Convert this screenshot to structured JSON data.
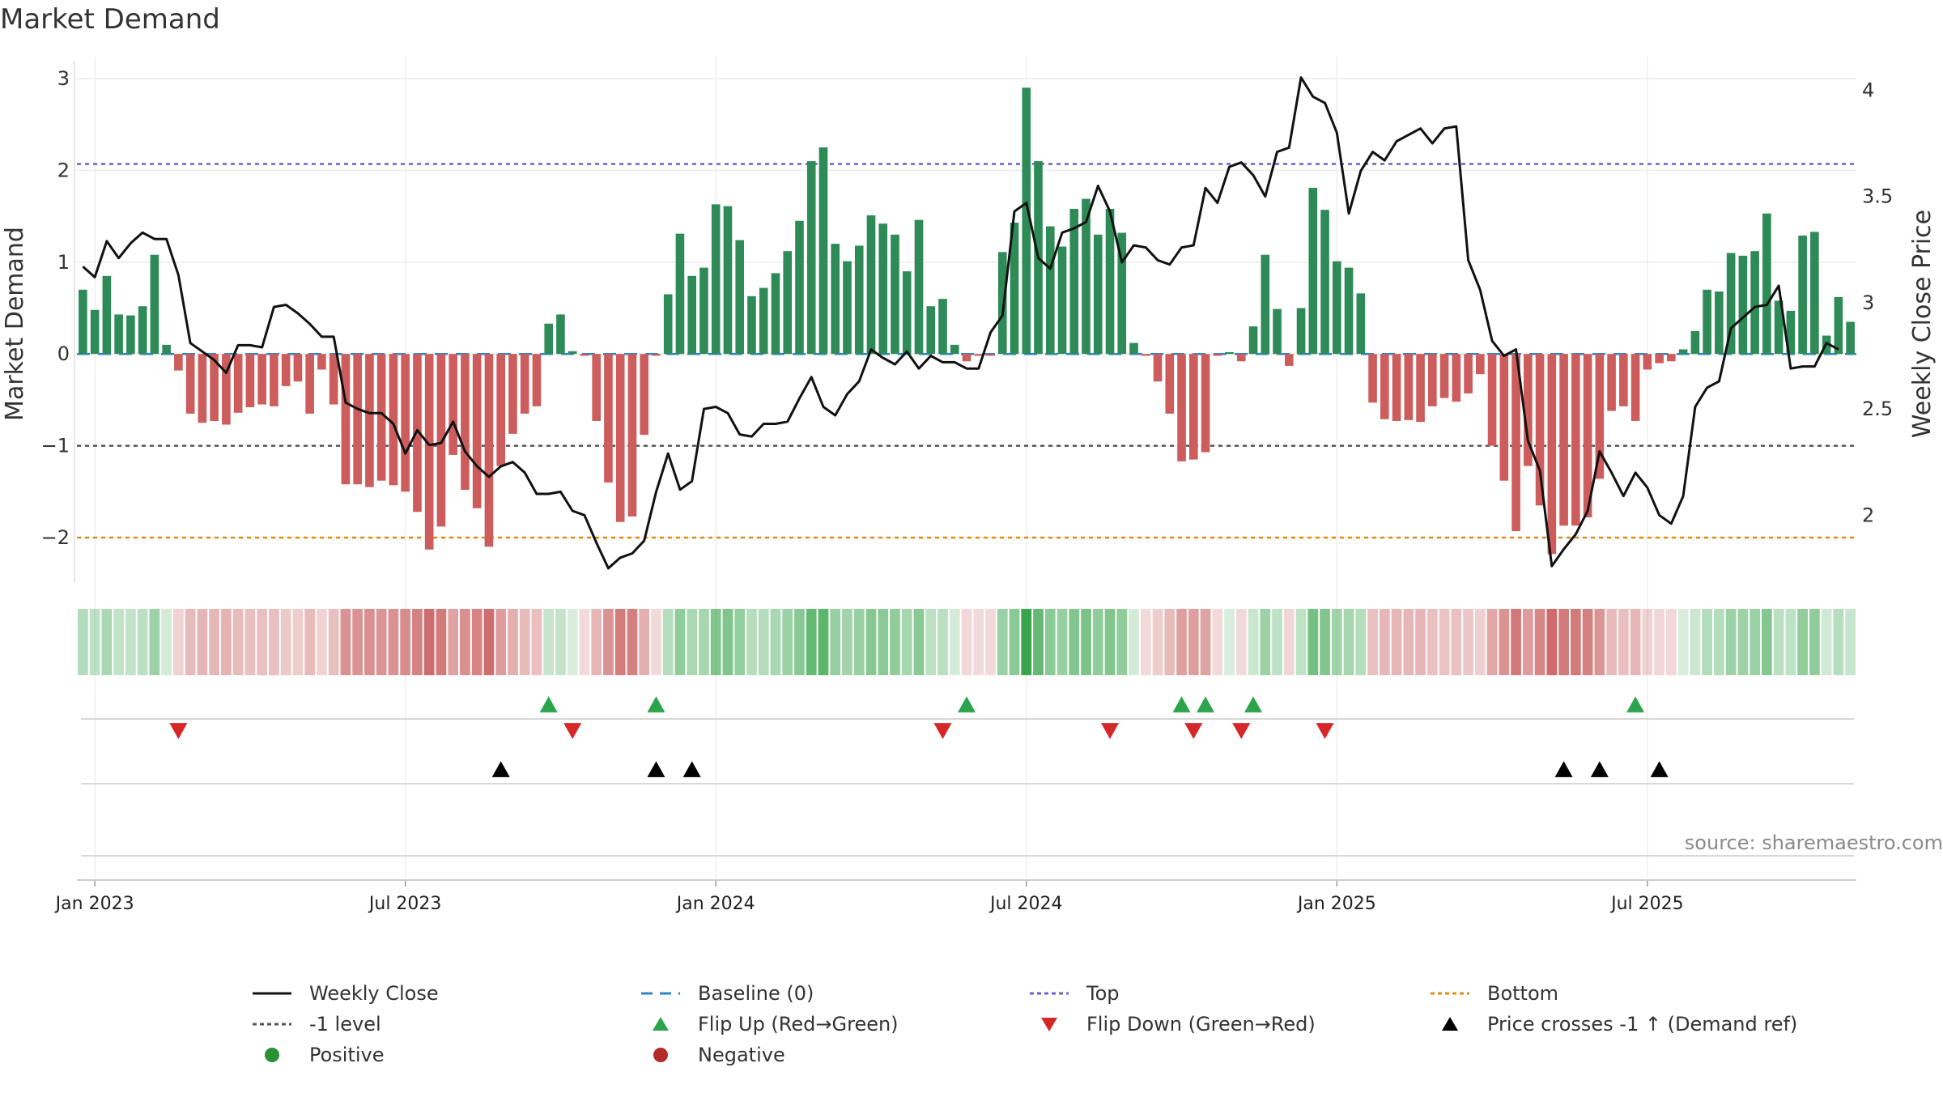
{
  "chart_data": {
    "type": "bar",
    "title": "Market Demand",
    "ylabel": "Market Demand",
    "y2label": "Weekly Close Price",
    "ylim": [
      -2.45,
      3.15
    ],
    "y2lim": [
      1.7,
      4.12
    ],
    "yticks": [
      3,
      2,
      1,
      0,
      -1,
      -2
    ],
    "ytick_labels": [
      "3",
      "2",
      "1",
      "0",
      "−1",
      "−2"
    ],
    "y2ticks": [
      4,
      3.5,
      3,
      2.5,
      2
    ],
    "y2tick_labels": [
      "4",
      "3.5",
      "3",
      "2.5",
      "2"
    ],
    "x_ticks": [
      "Jan 2023",
      "Jul 2023",
      "Jan 2024",
      "Jul 2024",
      "Jan 2025",
      "Jul 2025"
    ],
    "x_tick_weeks": [
      1.5,
      27.5,
      53.5,
      79.5,
      105.5,
      131.5
    ],
    "reference_lines": {
      "top": 2.07,
      "minus_one": -1,
      "bottom": -2,
      "baseline": 0
    },
    "series": [
      {
        "name": "Market Demand",
        "values": [
          0.7,
          0.48,
          0.85,
          0.43,
          0.42,
          0.52,
          1.08,
          0.1,
          -0.18,
          -0.65,
          -0.75,
          -0.73,
          -0.77,
          -0.64,
          -0.58,
          -0.55,
          -0.57,
          -0.35,
          -0.3,
          -0.65,
          -0.17,
          -0.55,
          -1.42,
          -1.42,
          -1.45,
          -1.38,
          -1.43,
          -1.5,
          -1.72,
          -2.13,
          -1.88,
          -1.1,
          -1.48,
          -1.68,
          -2.1,
          -1.22,
          -0.87,
          -0.65,
          -0.57,
          0.33,
          0.43,
          0.03,
          -0.02,
          -0.73,
          -1.4,
          -1.83,
          -1.77,
          -0.88,
          -0.02,
          0.65,
          1.31,
          0.85,
          0.94,
          1.63,
          1.61,
          1.24,
          0.63,
          0.72,
          0.88,
          1.12,
          1.45,
          2.1,
          2.25,
          1.2,
          1.01,
          1.18,
          1.51,
          1.42,
          1.3,
          0.9,
          1.46,
          0.52,
          0.6,
          0.1,
          -0.08,
          -0.02,
          -0.02,
          1.11,
          1.43,
          2.9,
          2.1,
          1.39,
          1.17,
          1.58,
          1.69,
          1.3,
          1.58,
          1.32,
          0.12,
          -0.02,
          -0.3,
          -0.65,
          -1.17,
          -1.15,
          -1.07,
          -0.02,
          0.02,
          -0.08,
          0.3,
          1.08,
          0.49,
          -0.13,
          0.5,
          1.81,
          1.57,
          1.01,
          0.94,
          0.66,
          -0.53,
          -0.71,
          -0.73,
          -0.72,
          -0.74,
          -0.57,
          -0.48,
          -0.52,
          -0.43,
          -0.22,
          -1.0,
          -1.38,
          -1.93,
          -1.22,
          -1.65,
          -2.18,
          -1.87,
          -1.87,
          -1.78,
          -1.36,
          -0.62,
          -0.57,
          -0.73,
          -0.17,
          -0.1,
          -0.08,
          0.05,
          0.25,
          0.7,
          0.68,
          1.1,
          1.07,
          1.12,
          1.53,
          0.58,
          0.47,
          1.29,
          1.33,
          0.2,
          0.62,
          0.35
        ]
      },
      {
        "name": "Weekly Close",
        "axis": "right",
        "values": [
          3.17,
          3.12,
          3.29,
          3.21,
          3.28,
          3.33,
          3.3,
          3.3,
          3.13,
          2.81,
          2.77,
          2.73,
          2.67,
          2.8,
          2.8,
          2.79,
          2.98,
          2.99,
          2.95,
          2.9,
          2.84,
          2.84,
          2.53,
          2.5,
          2.48,
          2.48,
          2.43,
          2.29,
          2.4,
          2.33,
          2.34,
          2.44,
          2.3,
          2.23,
          2.18,
          2.23,
          2.25,
          2.2,
          2.1,
          2.1,
          2.11,
          2.02,
          2.0,
          1.87,
          1.75,
          1.8,
          1.82,
          1.88,
          2.11,
          2.29,
          2.12,
          2.16,
          2.5,
          2.51,
          2.48,
          2.38,
          2.37,
          2.43,
          2.43,
          2.44,
          2.55,
          2.65,
          2.51,
          2.47,
          2.57,
          2.63,
          2.78,
          2.74,
          2.71,
          2.77,
          2.69,
          2.75,
          2.72,
          2.72,
          2.69,
          2.69,
          2.86,
          2.94,
          3.43,
          3.47,
          3.21,
          3.16,
          3.33,
          3.35,
          3.38,
          3.55,
          3.43,
          3.19,
          3.27,
          3.26,
          3.2,
          3.18,
          3.26,
          3.27,
          3.54,
          3.47,
          3.64,
          3.66,
          3.6,
          3.5,
          3.71,
          3.73,
          4.06,
          3.97,
          3.94,
          3.8,
          3.42,
          3.62,
          3.71,
          3.67,
          3.76,
          3.79,
          3.82,
          3.75,
          3.82,
          3.83,
          3.2,
          3.06,
          2.82,
          2.75,
          2.78,
          2.35,
          2.21,
          1.76,
          1.84,
          1.91,
          2.02,
          2.3,
          2.2,
          2.09,
          2.2,
          2.13,
          2.0,
          1.96,
          2.09,
          2.51,
          2.6,
          2.63,
          2.88,
          2.93,
          2.98,
          2.99,
          3.08,
          2.69,
          2.7,
          2.7,
          2.81,
          2.78
        ]
      }
    ],
    "heat_strip": "weekly demand intensity strip (green = positive, red = negative)",
    "events": {
      "flip_up_weeks": [
        39,
        48,
        74,
        92,
        94,
        98,
        130
      ],
      "flip_down_weeks": [
        8,
        41,
        72,
        86,
        93,
        97,
        104
      ],
      "price_cross_weeks": [
        35,
        48,
        51,
        124,
        127,
        132
      ]
    },
    "source": "source: sharemaestro.com",
    "legend": [
      {
        "label": "Weekly Close",
        "marker": "solid-line",
        "color": "#111111"
      },
      {
        "label": "Baseline (0)",
        "marker": "dashed-line",
        "color": "#2f86c6"
      },
      {
        "label": "Top",
        "marker": "dotted-line",
        "color": "#6c62c8"
      },
      {
        "label": "Bottom",
        "marker": "dotted-line",
        "color": "#e08a1a"
      },
      {
        "label": "-1 level",
        "marker": "dotted-line",
        "color": "#555555"
      },
      {
        "label": "Flip Up (Red→Green)",
        "marker": "triangle-up",
        "color": "#2ca44c"
      },
      {
        "label": "Flip Down (Green→Red)",
        "marker": "triangle-down",
        "color": "#d62728"
      },
      {
        "label": "Price crosses -1 ↑ (Demand ref)",
        "marker": "triangle-up",
        "color": "#000000"
      },
      {
        "label": "Positive",
        "marker": "circle",
        "color": "#2a9133"
      },
      {
        "label": "Negative",
        "marker": "circle",
        "color": "#b22a2a"
      }
    ]
  },
  "colors": {
    "positive_bar": "#2e8b57",
    "negative_bar": "#cd5c5c",
    "price_line": "#111111",
    "grid": "#e6e6e6"
  }
}
